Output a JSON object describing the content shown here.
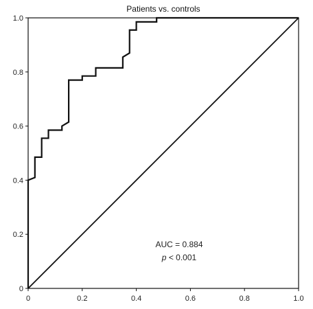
{
  "chart_data": {
    "type": "line",
    "title": "Patients vs. controls",
    "xlabel": "",
    "ylabel": "",
    "xlim": [
      0,
      1
    ],
    "ylim": [
      0,
      1
    ],
    "xticks": [
      "0",
      "0.2",
      "0.4",
      "0.6",
      "0.8",
      "1.0"
    ],
    "yticks": [
      "0",
      "0.2",
      "0.4",
      "0.6",
      "0.8",
      "1.0"
    ],
    "grid": false,
    "annotations": {
      "auc": "AUC = 0.884",
      "p_symbol": "p",
      "p_rest": " < 0.001"
    },
    "series": [
      {
        "x": [
          0,
          0,
          0.025,
          0.025,
          0.05,
          0.05,
          0.075,
          0.075,
          0.125,
          0.125,
          0.15,
          0.15,
          0.2,
          0.2,
          0.25,
          0.25,
          0.35,
          0.35,
          0.375,
          0.375,
          0.4,
          0.4,
          0.475,
          0.475,
          1.0
        ],
        "y": [
          0,
          0.4,
          0.41,
          0.485,
          0.485,
          0.555,
          0.555,
          0.585,
          0.585,
          0.6,
          0.615,
          0.77,
          0.77,
          0.785,
          0.785,
          0.815,
          0.815,
          0.855,
          0.87,
          0.955,
          0.955,
          0.985,
          0.985,
          1.0,
          1.0
        ],
        "color": "#111111"
      },
      {
        "x": [
          0,
          1
        ],
        "y": [
          0,
          1
        ],
        "color": "#111111"
      }
    ]
  }
}
